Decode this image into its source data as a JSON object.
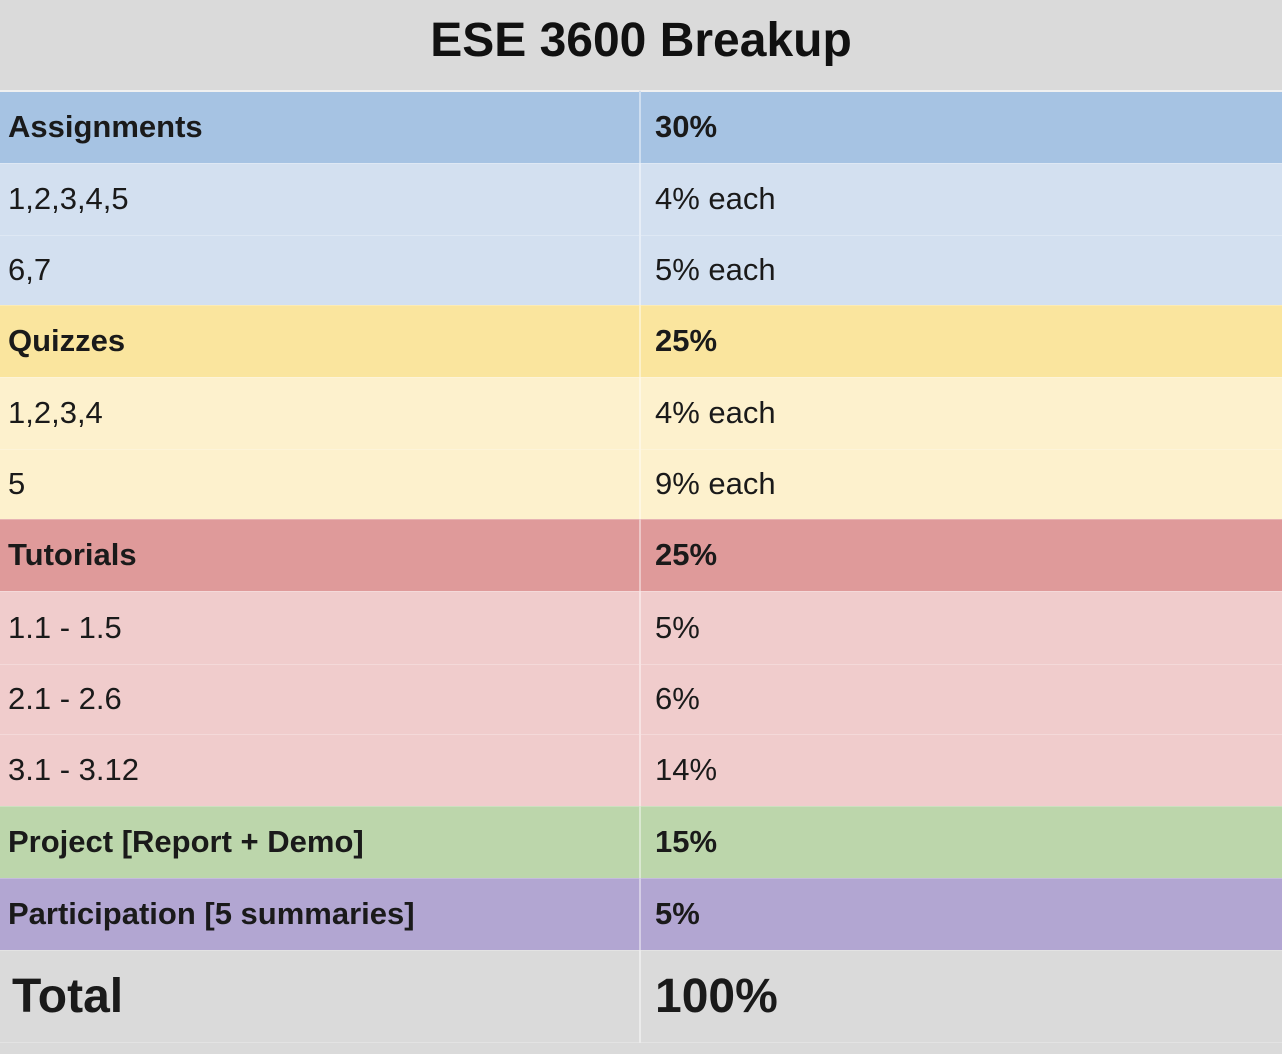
{
  "title": "ESE 3600 Breakup",
  "sections": [
    {
      "name": "Assignments",
      "weight": "30%",
      "header_color": "#a6c3e3",
      "row_color": "#d3e0f0",
      "items": [
        {
          "label": "1,2,3,4,5",
          "value": "4% each"
        },
        {
          "label": "6,7",
          "value": "5% each"
        }
      ]
    },
    {
      "name": "Quizzes",
      "weight": "25%",
      "header_color": "#fae59e",
      "row_color": "#fdf1cd",
      "items": [
        {
          "label": "1,2,3,4",
          "value": "4% each"
        },
        {
          "label": "5",
          "value": "9% each"
        }
      ]
    },
    {
      "name": "Tutorials",
      "weight": "25%",
      "header_color": "#df9a9a",
      "row_color": "#f0cccc",
      "items": [
        {
          "label": "1.1 - 1.5",
          "value": "5%"
        },
        {
          "label": "2.1 - 2.6",
          "value": "6%"
        },
        {
          "label": "3.1 - 3.12",
          "value": "14%"
        }
      ]
    },
    {
      "name": "Project [Report + Demo]",
      "weight": "15%",
      "header_color": "#bcd6ab",
      "row_color": "#dceacf",
      "items": []
    },
    {
      "name": "Participation [5 summaries]",
      "weight": "5%",
      "header_color": "#b2a6d2",
      "row_color": "#d7d0e8",
      "items": []
    }
  ],
  "total": {
    "label": "Total",
    "value": "100%",
    "color": "#dadada"
  }
}
